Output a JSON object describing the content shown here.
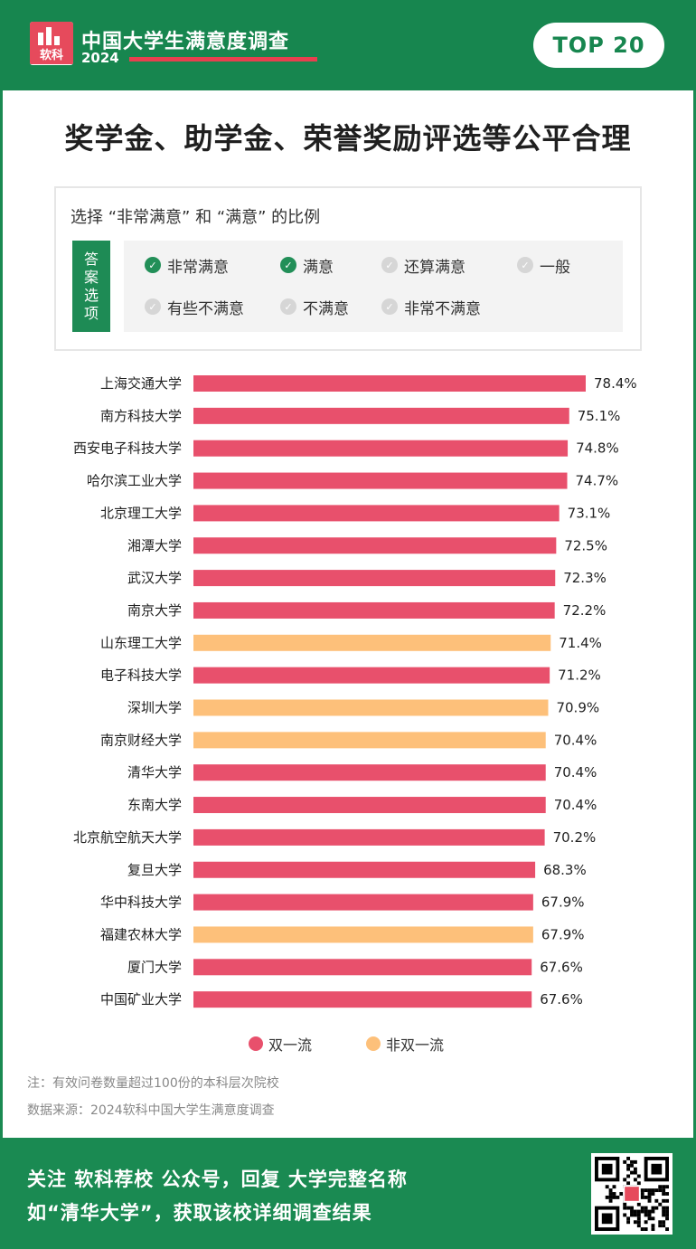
{
  "header": {
    "logo_text": "软科",
    "title": "中国大学生满意度调查",
    "year": "2024",
    "badge": "TOP 20"
  },
  "main_title": "奖学金、助学金、荣誉奖励评选等公平合理",
  "question": {
    "caption": "选择 “非常满意” 和 “满意” 的比例",
    "tag": [
      "答",
      "案",
      "选",
      "项"
    ],
    "options": [
      {
        "label": "非常满意",
        "selected": true
      },
      {
        "label": "满意",
        "selected": true
      },
      {
        "label": "还算满意",
        "selected": false
      },
      {
        "label": "一般",
        "selected": false
      },
      {
        "label": "有些不满意",
        "selected": false
      },
      {
        "label": "不满意",
        "selected": false
      },
      {
        "label": "非常不满意",
        "selected": false
      }
    ]
  },
  "colors": {
    "double_first_class": "#e8506c",
    "non_double_first_class": "#fdc07a",
    "brand_green": "#17864f"
  },
  "legend": [
    {
      "label": "双一流",
      "color": "#e8506c"
    },
    {
      "label": "非双一流",
      "color": "#fdc07a"
    }
  ],
  "chart_data": {
    "type": "bar",
    "orientation": "horizontal",
    "title": "奖学金、助学金、荣誉奖励评选等公平合理",
    "categories": [
      "上海交通大学",
      "南方科技大学",
      "西安电子科技大学",
      "哈尔滨工业大学",
      "北京理工大学",
      "湘潭大学",
      "武汉大学",
      "南京大学",
      "山东理工大学",
      "电子科技大学",
      "深圳大学",
      "南京财经大学",
      "清华大学",
      "东南大学",
      "北京航空航天大学",
      "复旦大学",
      "华中科技大学",
      "福建农林大学",
      "厦门大学",
      "中国矿业大学"
    ],
    "values": [
      78.4,
      75.1,
      74.8,
      74.7,
      73.1,
      72.5,
      72.3,
      72.2,
      71.4,
      71.2,
      70.9,
      70.4,
      70.4,
      70.4,
      70.2,
      68.3,
      67.9,
      67.9,
      67.6,
      67.6
    ],
    "value_labels": [
      "78.4%",
      "75.1%",
      "74.8%",
      "74.7%",
      "73.1%",
      "72.5%",
      "72.3%",
      "72.2%",
      "71.4%",
      "71.2%",
      "70.9%",
      "70.4%",
      "70.4%",
      "70.4%",
      "70.2%",
      "68.3%",
      "67.9%",
      "67.9%",
      "67.6%",
      "67.6%"
    ],
    "group": [
      "双一流",
      "双一流",
      "双一流",
      "双一流",
      "双一流",
      "双一流",
      "双一流",
      "双一流",
      "非双一流",
      "双一流",
      "非双一流",
      "非双一流",
      "双一流",
      "双一流",
      "双一流",
      "双一流",
      "双一流",
      "非双一流",
      "双一流",
      "双一流"
    ],
    "unit": "%",
    "legend_position": "bottom",
    "grid": false
  },
  "notes": {
    "note": "注：有效问卷数量超过100份的本科层次院校",
    "source": "数据来源：2024软科中国大学生满意度调查"
  },
  "footer": {
    "line1": "关注 软科荐校 公众号，回复 大学完整名称",
    "line2": "如“清华大学”，获取该校详细调查结果"
  }
}
